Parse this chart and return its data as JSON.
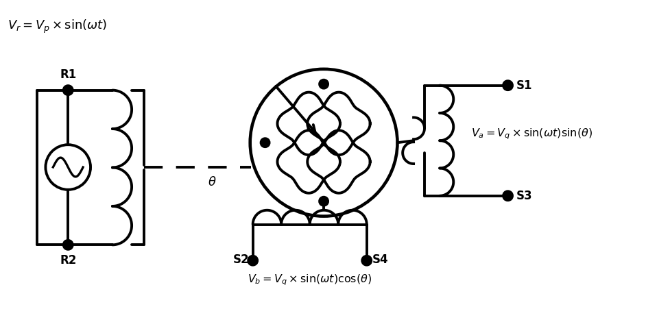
{
  "bg_color": "#ffffff",
  "line_color": "#000000",
  "lw": 2.8,
  "labels": {
    "Vr": "$V_r = V_p \\times \\sin(\\omega t)$",
    "Va": "$V_a = V_q \\times \\sin(\\omega t)\\sin(\\theta)$",
    "Vb": "$V_b = V_q \\times \\sin(\\omega t)\\cos(\\theta)$",
    "R1": "R1",
    "R2": "R2",
    "S1": "S1",
    "S2": "S2",
    "S3": "S3",
    "S4": "S4",
    "theta": "$\\theta$"
  },
  "figsize": [
    9.77,
    4.86
  ],
  "dpi": 100,
  "xlim": [
    0,
    9.77
  ],
  "ylim": [
    0,
    4.86
  ]
}
